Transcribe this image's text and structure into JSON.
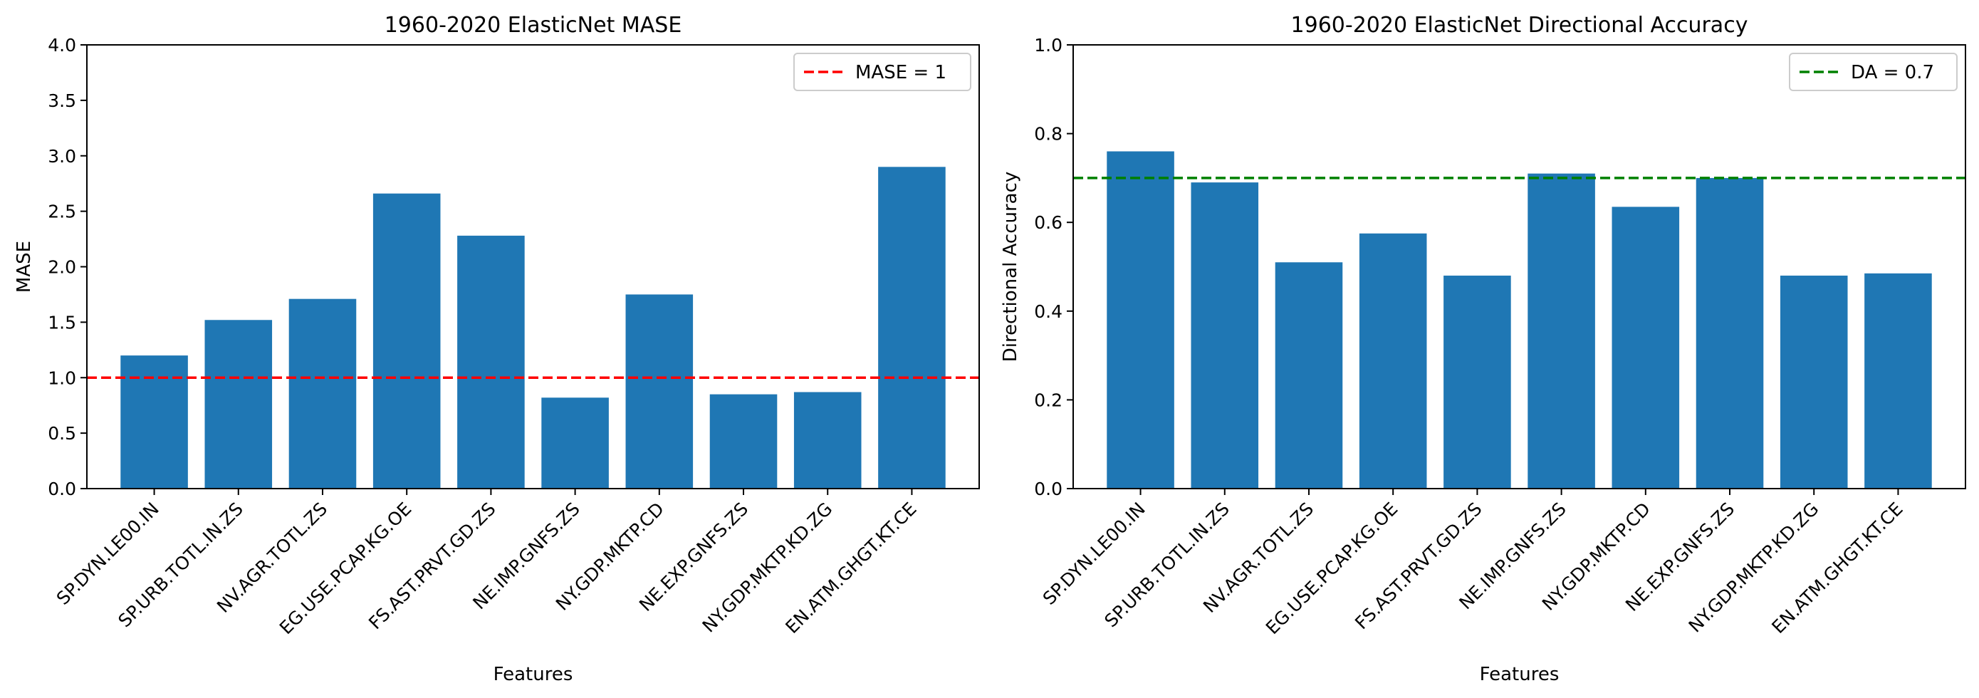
{
  "chart_data": [
    {
      "type": "bar",
      "title": "1960-2020 ElasticNet  MASE",
      "xlabel": "Features",
      "ylabel": "MASE",
      "ylim": [
        0,
        4
      ],
      "yticks": [
        "0.0",
        "0.5",
        "1.0",
        "1.5",
        "2.0",
        "2.5",
        "3.0",
        "3.5",
        "4.0"
      ],
      "categories": [
        "SP.DYN.LE00.IN",
        "SP.URB.TOTL.IN.ZS",
        "NV.AGR.TOTL.ZS",
        "EG.USE.PCAP.KG.OE",
        "FS.AST.PRVT.GD.ZS",
        "NE.IMP.GNFS.ZS",
        "NY.GDP.MKTP.CD",
        "NE.EXP.GNFS.ZS",
        "NY.GDP.MKTP.KD.ZG",
        "EN.ATM.GHGT.KT.CE"
      ],
      "values": [
        1.2,
        1.52,
        1.71,
        2.66,
        2.28,
        0.82,
        1.75,
        0.85,
        0.87,
        2.9
      ],
      "bar_color": "#1f77b4",
      "reference_line": {
        "value": 1.0,
        "label": "MASE = 1",
        "color": "#ff0000",
        "style": "dashed"
      },
      "legend": "top-right",
      "grid": false
    },
    {
      "type": "bar",
      "title": "1960-2020 ElasticNet  Directional Accuracy",
      "xlabel": "Features",
      "ylabel": "Directional Accuracy",
      "ylim": [
        0,
        1
      ],
      "yticks": [
        "0.0",
        "0.2",
        "0.4",
        "0.6",
        "0.8",
        "1.0"
      ],
      "categories": [
        "SP.DYN.LE00.IN",
        "SP.URB.TOTL.IN.ZS",
        "NV.AGR.TOTL.ZS",
        "EG.USE.PCAP.KG.OE",
        "FS.AST.PRVT.GD.ZS",
        "NE.IMP.GNFS.ZS",
        "NY.GDP.MKTP.CD",
        "NE.EXP.GNFS.ZS",
        "NY.GDP.MKTP.KD.ZG",
        "EN.ATM.GHGT.KT.CE"
      ],
      "values": [
        0.76,
        0.69,
        0.51,
        0.575,
        0.48,
        0.71,
        0.635,
        0.7,
        0.48,
        0.485
      ],
      "bar_color": "#1f77b4",
      "reference_line": {
        "value": 0.7,
        "label": "DA = 0.7",
        "color": "#008000",
        "style": "dashed"
      },
      "legend": "top-right",
      "grid": false
    }
  ]
}
